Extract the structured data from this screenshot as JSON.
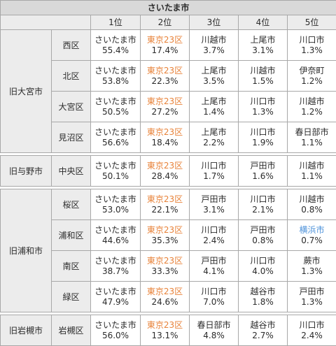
{
  "title": "さいたま市",
  "ranks": [
    "1位",
    "2位",
    "3位",
    "4位",
    "5位"
  ],
  "groups": [
    {
      "name": "旧大宮市",
      "wards": [
        {
          "name": "西区",
          "cities": [
            {
              "city": "さいたま市",
              "pct": "55.4%"
            },
            {
              "city": "東京23区",
              "pct": "17.4%",
              "color": "orange"
            },
            {
              "city": "川越市",
              "pct": "3.7%"
            },
            {
              "city": "上尾市",
              "pct": "3.1%"
            },
            {
              "city": "川口市",
              "pct": "1.3%"
            }
          ]
        },
        {
          "name": "北区",
          "cities": [
            {
              "city": "さいたま市",
              "pct": "53.8%"
            },
            {
              "city": "東京23区",
              "pct": "22.3%",
              "color": "orange"
            },
            {
              "city": "上尾市",
              "pct": "3.5%"
            },
            {
              "city": "川越市",
              "pct": "1.5%"
            },
            {
              "city": "伊奈町",
              "pct": "1.2%"
            }
          ]
        },
        {
          "name": "大宮区",
          "cities": [
            {
              "city": "さいたま市",
              "pct": "50.5%"
            },
            {
              "city": "東京23区",
              "pct": "27.2%",
              "color": "orange"
            },
            {
              "city": "上尾市",
              "pct": "1.4%"
            },
            {
              "city": "川口市",
              "pct": "1.3%"
            },
            {
              "city": "川越市",
              "pct": "1.2%"
            }
          ]
        },
        {
          "name": "見沼区",
          "cities": [
            {
              "city": "さいたま市",
              "pct": "56.6%"
            },
            {
              "city": "東京23区",
              "pct": "18.4%",
              "color": "orange"
            },
            {
              "city": "上尾市",
              "pct": "2.2%"
            },
            {
              "city": "川口市",
              "pct": "1.9%"
            },
            {
              "city": "春日部市",
              "pct": "1.1%"
            }
          ]
        }
      ]
    },
    {
      "name": "旧与野市",
      "wards": [
        {
          "name": "中央区",
          "cities": [
            {
              "city": "さいたま市",
              "pct": "50.1%"
            },
            {
              "city": "東京23区",
              "pct": "28.4%",
              "color": "orange"
            },
            {
              "city": "川口市",
              "pct": "1.7%"
            },
            {
              "city": "戸田市",
              "pct": "1.6%"
            },
            {
              "city": "川越市",
              "pct": "1.1%"
            }
          ]
        }
      ]
    },
    {
      "name": "旧浦和市",
      "wards": [
        {
          "name": "桜区",
          "cities": [
            {
              "city": "さいたま市",
              "pct": "53.0%"
            },
            {
              "city": "東京23区",
              "pct": "22.1%",
              "color": "orange"
            },
            {
              "city": "戸田市",
              "pct": "3.1%"
            },
            {
              "city": "川口市",
              "pct": "2.1%"
            },
            {
              "city": "川越市",
              "pct": "0.8%"
            }
          ]
        },
        {
          "name": "浦和区",
          "cities": [
            {
              "city": "さいたま市",
              "pct": "44.6%"
            },
            {
              "city": "東京23区",
              "pct": "35.3%",
              "color": "orange"
            },
            {
              "city": "川口市",
              "pct": "2.4%"
            },
            {
              "city": "戸田市",
              "pct": "0.8%"
            },
            {
              "city": "横浜市",
              "pct": "0.7%",
              "color": "blue"
            }
          ]
        },
        {
          "name": "南区",
          "cities": [
            {
              "city": "さいたま市",
              "pct": "38.7%"
            },
            {
              "city": "東京23区",
              "pct": "33.3%",
              "color": "orange"
            },
            {
              "city": "戸田市",
              "pct": "4.1%"
            },
            {
              "city": "川口市",
              "pct": "4.0%"
            },
            {
              "city": "蕨市",
              "pct": "1.3%"
            }
          ]
        },
        {
          "name": "緑区",
          "cities": [
            {
              "city": "さいたま市",
              "pct": "47.9%"
            },
            {
              "city": "東京23区",
              "pct": "24.6%",
              "color": "orange"
            },
            {
              "city": "川口市",
              "pct": "7.0%"
            },
            {
              "city": "越谷市",
              "pct": "1.8%"
            },
            {
              "city": "戸田市",
              "pct": "1.3%"
            }
          ]
        }
      ]
    },
    {
      "name": "旧岩槻市",
      "wards": [
        {
          "name": "岩槻区",
          "cities": [
            {
              "city": "さいたま市",
              "pct": "56.0%"
            },
            {
              "city": "東京23区",
              "pct": "13.1%",
              "color": "orange"
            },
            {
              "city": "春日部市",
              "pct": "4.8%"
            },
            {
              "city": "越谷市",
              "pct": "2.7%"
            },
            {
              "city": "川口市",
              "pct": "2.4%"
            }
          ]
        }
      ]
    }
  ],
  "colors": {
    "orange": "#e8833a",
    "blue": "#4a90d9",
    "header_bg": "#ececec",
    "title_bg": "#d9d9d9"
  }
}
